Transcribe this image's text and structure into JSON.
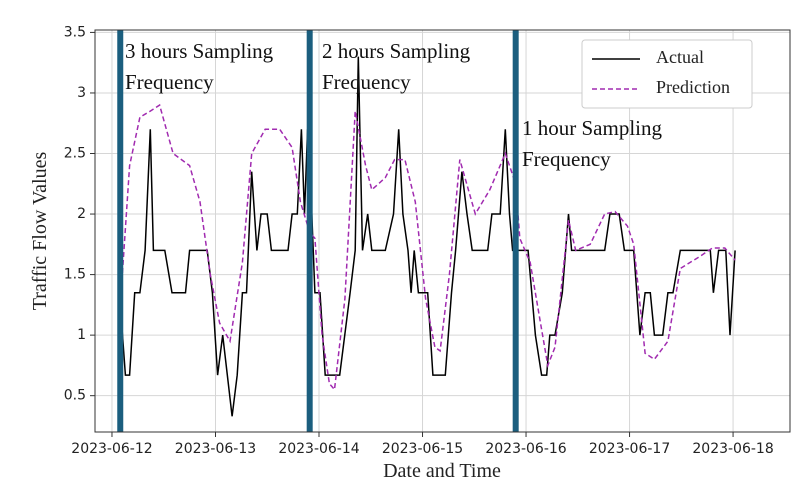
{
  "chart_data": {
    "type": "line",
    "xlabel": "Date and Time",
    "ylabel": "Traffic Flow Values",
    "xlim": [
      -0.164,
      6.55
    ],
    "ylim": [
      0.2,
      3.52
    ],
    "xticks": [
      {
        "value": 0,
        "label": "2023-06-12"
      },
      {
        "value": 1,
        "label": "2023-06-13"
      },
      {
        "value": 2,
        "label": "2023-06-14"
      },
      {
        "value": 3,
        "label": "2023-06-15"
      },
      {
        "value": 4,
        "label": "2023-06-16"
      },
      {
        "value": 5,
        "label": "2023-06-17"
      },
      {
        "value": 6,
        "label": "2023-06-18"
      }
    ],
    "yticks": [
      0.5,
      1.0,
      1.5,
      2.0,
      2.5,
      3.0,
      3.5
    ],
    "grid": true,
    "legend": "upper right",
    "separators": [
      0.08,
      1.91,
      3.9
    ],
    "separator_color": "#1b5e7e",
    "annotations": [
      {
        "text": "3 hours Sampling Frequency"
      },
      {
        "text": "2 hours Sampling Frequency"
      },
      {
        "text": "1 hour Sampling Frequency"
      }
    ],
    "series": [
      {
        "name": "Actual",
        "color": "#000000",
        "dash": false,
        "x": [
          0.08,
          0.13,
          0.17,
          0.22,
          0.27,
          0.32,
          0.37,
          0.4,
          0.51,
          0.58,
          0.71,
          0.75,
          0.92,
          0.97,
          1.02,
          1.07,
          1.16,
          1.21,
          1.26,
          1.3,
          1.35,
          1.4,
          1.44,
          1.5,
          1.54,
          1.7,
          1.74,
          1.79,
          1.83,
          1.86,
          1.89,
          1.93,
          1.96,
          2.01,
          2.06,
          2.2,
          2.3,
          2.35,
          2.38,
          2.42,
          2.47,
          2.51,
          2.64,
          2.72,
          2.77,
          2.81,
          2.86,
          2.89,
          2.92,
          2.96,
          3.05,
          3.1,
          3.22,
          3.28,
          3.32,
          3.38,
          3.43,
          3.48,
          3.63,
          3.67,
          3.75,
          3.8,
          3.84,
          3.87,
          3.94,
          4.02,
          4.09,
          4.15,
          4.2,
          4.23,
          4.28,
          4.35,
          4.41,
          4.44,
          4.76,
          4.81,
          4.9,
          4.95,
          5.04,
          5.1,
          5.15,
          5.2,
          5.24,
          5.32,
          5.37,
          5.42,
          5.49,
          5.78,
          5.81,
          5.86,
          5.93,
          5.97,
          6.02
        ],
        "values": [
          1.25,
          0.67,
          0.67,
          1.35,
          1.35,
          1.7,
          2.7,
          1.7,
          1.7,
          1.35,
          1.35,
          1.7,
          1.7,
          1.35,
          0.67,
          1.0,
          0.33,
          0.67,
          1.35,
          1.35,
          2.35,
          1.7,
          2.0,
          2.0,
          1.7,
          1.7,
          2.0,
          2.0,
          2.7,
          2.0,
          2.7,
          2.0,
          1.35,
          1.35,
          0.67,
          0.67,
          1.35,
          1.7,
          3.3,
          1.7,
          2.0,
          1.7,
          1.7,
          2.0,
          2.7,
          2.0,
          1.7,
          1.35,
          1.7,
          1.35,
          1.35,
          0.67,
          0.67,
          1.35,
          1.7,
          2.35,
          2.0,
          1.7,
          1.7,
          2.0,
          2.0,
          2.7,
          2.0,
          1.7,
          1.7,
          1.7,
          1.0,
          0.67,
          0.67,
          1.0,
          1.0,
          1.35,
          2.0,
          1.7,
          1.7,
          2.0,
          2.0,
          1.7,
          1.7,
          1.0,
          1.35,
          1.35,
          1.0,
          1.0,
          1.35,
          1.35,
          1.7,
          1.7,
          1.35,
          1.7,
          1.7,
          1.0,
          1.7
        ]
      },
      {
        "name": "Prediction",
        "color": "#a12bb0",
        "dash": true,
        "x": [
          0.08,
          0.17,
          0.27,
          0.37,
          0.46,
          0.59,
          0.75,
          0.85,
          0.95,
          1.04,
          1.14,
          1.26,
          1.35,
          1.48,
          1.62,
          1.74,
          1.82,
          1.91,
          1.96,
          2.03,
          2.1,
          2.15,
          2.25,
          2.35,
          2.45,
          2.51,
          2.64,
          2.73,
          2.83,
          2.93,
          3.03,
          3.12,
          3.17,
          3.26,
          3.36,
          3.51,
          3.65,
          3.8,
          3.9,
          3.94,
          4.04,
          4.14,
          4.21,
          4.28,
          4.41,
          4.48,
          4.62,
          4.76,
          4.86,
          4.98,
          5.04,
          5.15,
          5.24,
          5.37,
          5.49,
          5.68,
          5.8,
          5.92,
          6.02
        ],
        "values": [
          1.25,
          2.4,
          2.8,
          2.85,
          2.9,
          2.5,
          2.4,
          2.1,
          1.5,
          1.1,
          0.95,
          1.6,
          2.5,
          2.7,
          2.7,
          2.55,
          2.1,
          1.85,
          1.8,
          1.0,
          0.6,
          0.55,
          1.3,
          2.85,
          2.4,
          2.2,
          2.3,
          2.45,
          2.45,
          2.1,
          1.3,
          0.9,
          0.87,
          1.5,
          2.45,
          2.0,
          2.2,
          2.5,
          2.25,
          1.8,
          1.6,
          1.1,
          0.75,
          0.9,
          1.95,
          1.7,
          1.75,
          2.0,
          2.02,
          1.9,
          1.75,
          0.85,
          0.8,
          0.95,
          1.55,
          1.65,
          1.72,
          1.72,
          1.62
        ]
      }
    ]
  }
}
